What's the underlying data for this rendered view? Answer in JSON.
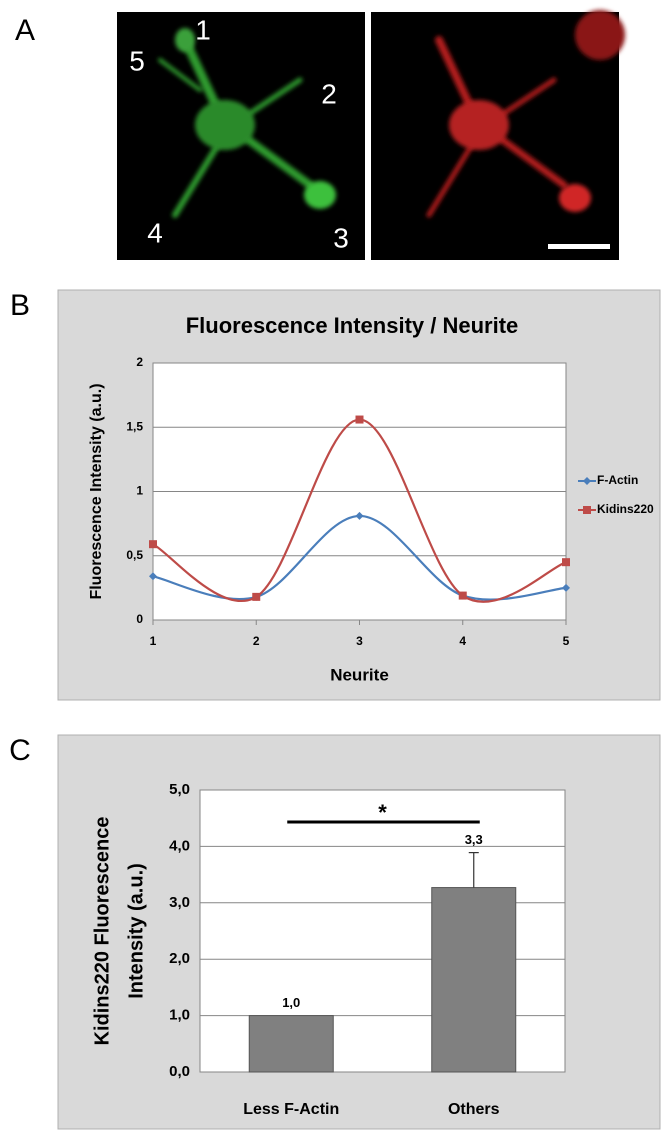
{
  "panels": [
    "A",
    "B",
    "C"
  ],
  "image_labels": [
    "1",
    "2",
    "3",
    "4",
    "5"
  ],
  "chart_data": [
    {
      "type": "line",
      "title": "Fluorescence Intensity / Neurite",
      "xlabel": "Neurite",
      "ylabel": "Fluorescence Intensity (a.u.)",
      "x": [
        1,
        2,
        3,
        4,
        5
      ],
      "xlim": [
        1,
        5
      ],
      "xticks": [
        1,
        2,
        3,
        4,
        5
      ],
      "ylim": [
        0,
        2
      ],
      "yticks": [
        0,
        {
          "value": 0.5,
          "label": "0,5"
        },
        1,
        {
          "value": 1.5,
          "label": "1,5"
        },
        2
      ],
      "grid": true,
      "legend": "right",
      "series": [
        {
          "name": "F-Actin",
          "color": "#4a7ebb",
          "marker": "diamond",
          "values": [
            0.34,
            0.18,
            0.81,
            0.19,
            0.25
          ]
        },
        {
          "name": "Kidins220",
          "color": "#be4b48",
          "marker": "square",
          "values": [
            0.59,
            0.18,
            1.56,
            0.19,
            0.45
          ]
        }
      ]
    },
    {
      "type": "bar",
      "ylabel": [
        "Kidins220 Fluorescence",
        "Intensity (a.u.)"
      ],
      "categories": [
        "Less F-Actin",
        "Others"
      ],
      "values": [
        1.0,
        3.27
      ],
      "value_labels": [
        "1,0",
        "3,3"
      ],
      "errors": [
        null,
        0.62
      ],
      "color": "#808080",
      "ylim": [
        0,
        5
      ],
      "yticks": [
        {
          "value": 0,
          "label": "0,0"
        },
        {
          "value": 1,
          "label": "1,0"
        },
        {
          "value": 2,
          "label": "2,0"
        },
        {
          "value": 3,
          "label": "3,0"
        },
        {
          "value": 4,
          "label": "4,0"
        },
        {
          "value": 5,
          "label": "5,0"
        }
      ],
      "grid": true,
      "annotation": "*"
    }
  ]
}
